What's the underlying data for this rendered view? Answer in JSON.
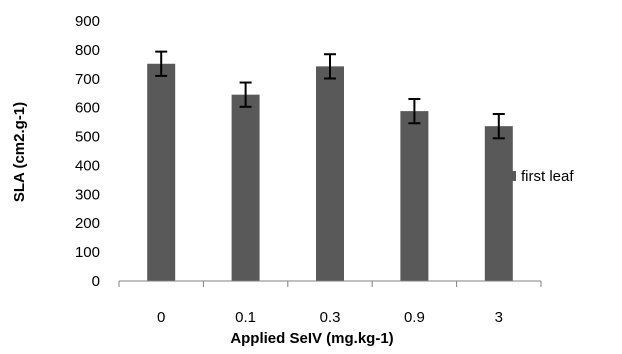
{
  "chart_data": {
    "type": "bar",
    "title": "",
    "xlabel": "Applied SeIV (mg.kg-1)",
    "ylabel": "SLA (cm2.g-1)",
    "categories": [
      "0",
      "0.1",
      "0.3",
      "0.9",
      "3"
    ],
    "series": [
      {
        "name": "first leaf",
        "values": [
          752,
          645,
          743,
          588,
          536
        ],
        "errors": [
          42,
          42,
          42,
          42,
          42
        ]
      }
    ],
    "ylim": [
      0,
      900
    ],
    "yticks": [
      0,
      100,
      200,
      300,
      400,
      500,
      600,
      700,
      800,
      900
    ],
    "grid": false,
    "legend_position": "right",
    "colors": {
      "bar": "#595959",
      "axis": "#808080",
      "error_bar": "#000000"
    }
  }
}
